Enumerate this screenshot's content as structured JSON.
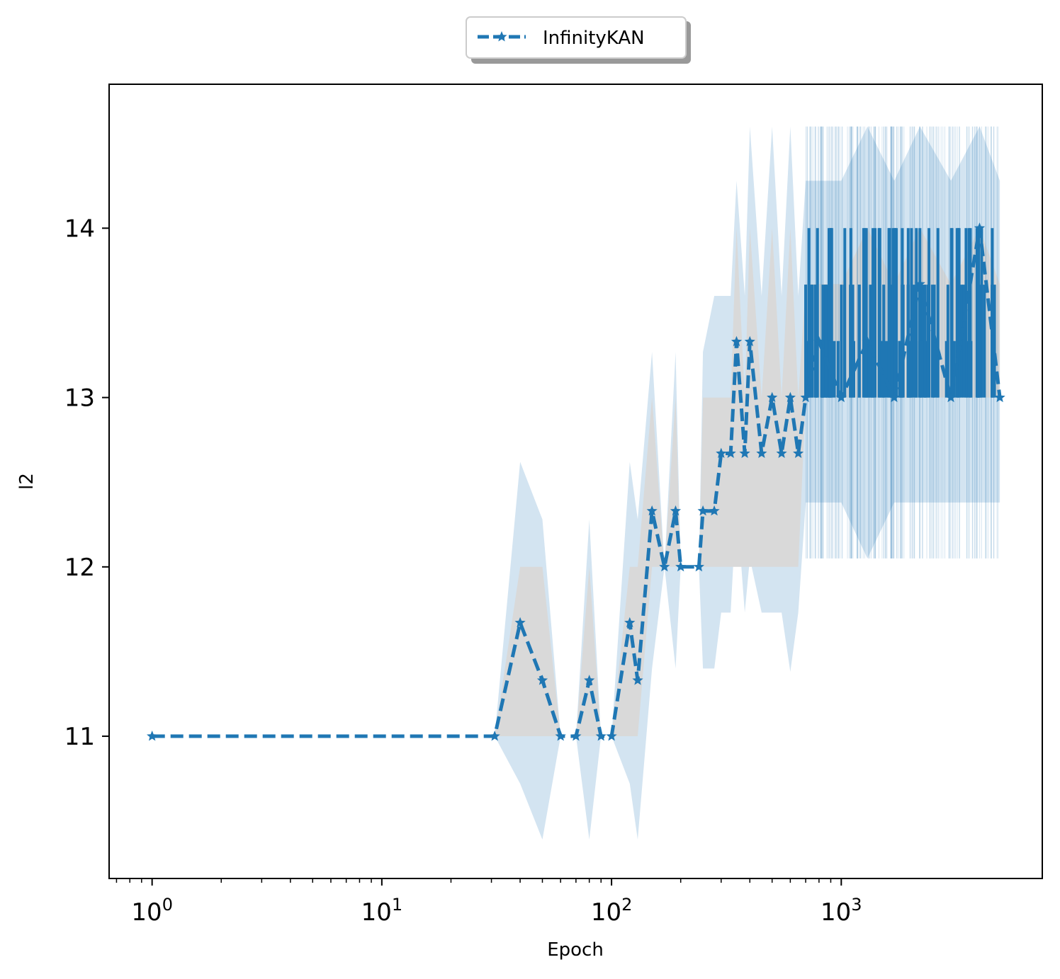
{
  "chart_data": {
    "type": "line",
    "xlabel": "Epoch",
    "ylabel": "l2",
    "xscale": "log",
    "xlim": [
      0.65,
      7500
    ],
    "ylim": [
      10.16,
      14.85
    ],
    "grid": false,
    "legend": {
      "placement": "top-center, above plot",
      "entries": [
        "InfinityKAN"
      ]
    },
    "x_ticks": [
      {
        "value": 1,
        "base": "10",
        "exp": "0"
      },
      {
        "value": 10,
        "base": "10",
        "exp": "1"
      },
      {
        "value": 100,
        "base": "10",
        "exp": "2"
      },
      {
        "value": 1000,
        "base": "10",
        "exp": "3"
      }
    ],
    "y_ticks": [
      11,
      12,
      13,
      14
    ],
    "colors": {
      "series": "#1f77b4",
      "band_outer": "#d3e4f1",
      "band_inner": "#d9d9d9"
    },
    "series": [
      {
        "name": "InfinityKAN",
        "style": "dashed line with star markers",
        "x": [
          1,
          31,
          40,
          50,
          60,
          70,
          80,
          90,
          100,
          120,
          130,
          150,
          170,
          190,
          200,
          240,
          250,
          280,
          300,
          330,
          350,
          380,
          400,
          450,
          500,
          550,
          600,
          650,
          700,
          800,
          1000,
          1300,
          1700,
          2200,
          3000,
          4000,
          4900
        ],
        "y": [
          11.0,
          11.0,
          11.67,
          11.33,
          11.0,
          11.0,
          11.33,
          11.0,
          11.0,
          11.67,
          11.33,
          12.33,
          12.0,
          12.33,
          12.0,
          12.0,
          12.33,
          12.33,
          12.67,
          12.67,
          13.33,
          12.67,
          13.33,
          12.67,
          13.0,
          12.67,
          13.0,
          12.67,
          13.0,
          13.33,
          13.0,
          13.33,
          13.0,
          13.67,
          13.0,
          14.0,
          13.0
        ],
        "band_outer_upper": [
          11.0,
          11.0,
          12.62,
          12.28,
          11.0,
          11.0,
          12.28,
          11.0,
          11.0,
          12.62,
          12.28,
          13.27,
          12.0,
          13.27,
          12.0,
          12.0,
          13.27,
          13.6,
          13.6,
          13.6,
          14.28,
          13.6,
          14.6,
          13.6,
          14.6,
          13.6,
          14.6,
          13.6,
          14.28,
          14.28,
          14.28,
          14.6,
          14.28,
          14.6,
          14.28,
          14.6,
          14.28
        ],
        "band_outer_lower": [
          11.0,
          11.0,
          10.72,
          10.39,
          11.0,
          11.0,
          10.39,
          11.0,
          11.0,
          10.72,
          10.39,
          11.4,
          12.0,
          11.4,
          12.0,
          12.0,
          11.4,
          11.4,
          11.73,
          11.73,
          12.38,
          11.73,
          12.05,
          11.73,
          11.73,
          11.73,
          11.38,
          11.73,
          12.38,
          12.38,
          12.38,
          12.05,
          12.38,
          12.38,
          12.38,
          12.38,
          12.38
        ],
        "band_inner_upper": [
          11.0,
          11.0,
          12.0,
          12.0,
          11.0,
          11.0,
          12.0,
          11.0,
          11.0,
          12.0,
          12.0,
          13.0,
          12.0,
          13.0,
          12.0,
          12.0,
          13.0,
          13.0,
          13.0,
          13.0,
          14.0,
          13.0,
          14.0,
          13.0,
          14.0,
          13.0,
          14.0,
          13.0,
          13.67,
          13.67,
          13.67,
          14.0,
          13.67,
          14.0,
          13.67,
          14.0,
          13.67
        ],
        "band_inner_lower": [
          11.0,
          11.0,
          11.0,
          11.0,
          11.0,
          11.0,
          11.0,
          11.0,
          11.0,
          11.0,
          11.0,
          12.0,
          12.0,
          12.0,
          12.0,
          12.0,
          12.0,
          12.0,
          12.0,
          12.0,
          12.0,
          12.0,
          12.0,
          12.0,
          12.0,
          12.0,
          12.0,
          12.0,
          13.0,
          13.0,
          13.0,
          13.0,
          13.0,
          13.0,
          13.0,
          13.0,
          13.0
        ]
      }
    ]
  }
}
